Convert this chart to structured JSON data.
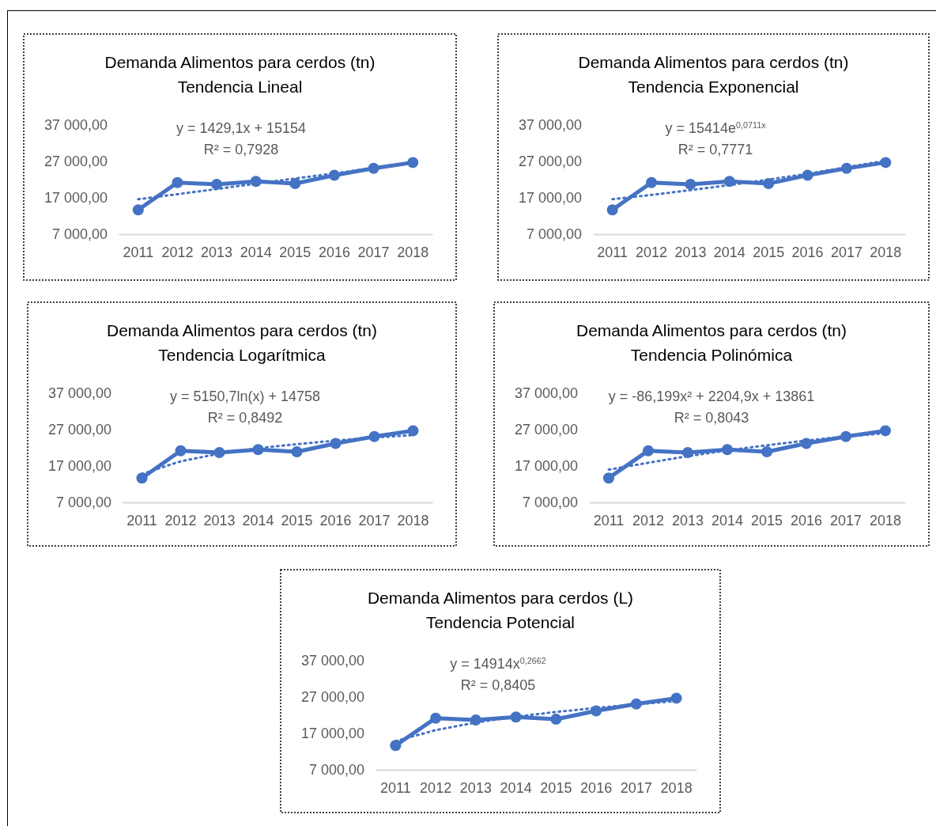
{
  "chart_data": [
    {
      "type": "line",
      "title": "Demanda Alimentos para cerdos (tn)",
      "subtitle": "Tendencia Lineal",
      "categories": [
        "2011",
        "2012",
        "2013",
        "2014",
        "2015",
        "2016",
        "2017",
        "2018"
      ],
      "ylim": [
        7000,
        37000
      ],
      "yticks": [
        {
          "value": 7000,
          "label": "7 000,00"
        },
        {
          "value": 17000,
          "label": "17 000,00"
        },
        {
          "value": 27000,
          "label": "27 000,00"
        },
        {
          "value": 37000,
          "label": "37 000,00"
        }
      ],
      "grid": false,
      "annotations": [
        "y = 1429,1x + 15154",
        "R² = 0,7928"
      ],
      "series": [
        {
          "color": "#4472c4",
          "marker": "circle",
          "line_style": "solid",
          "values": [
            13700,
            21200,
            20700,
            21500,
            20900,
            23200,
            25100,
            26700
          ]
        },
        {
          "type": "line",
          "color": "#4472c4",
          "marker": "none",
          "line_style": "dotted",
          "values": [
            16600,
            18000,
            19400,
            20900,
            22300,
            23700,
            25200,
            26600
          ]
        }
      ]
    },
    {
      "type": "line",
      "title": "Demanda Alimentos para cerdos (tn)",
      "subtitle": "Tendencia Exponencial",
      "categories": [
        "2011",
        "2012",
        "2013",
        "2014",
        "2015",
        "2016",
        "2017",
        "2018"
      ],
      "ylim": [
        7000,
        37000
      ],
      "yticks": [
        {
          "value": 7000,
          "label": "7 000,00"
        },
        {
          "value": 17000,
          "label": "17 000,00"
        },
        {
          "value": 27000,
          "label": "27 000,00"
        },
        {
          "value": 37000,
          "label": "37 000,00"
        }
      ],
      "grid": false,
      "annotations": [
        "y = 15414e$^{0,0711x}$",
        "R² = 0,7771"
      ],
      "series": [
        {
          "color": "#4472c4",
          "marker": "circle",
          "line_style": "solid",
          "values": [
            13700,
            21200,
            20700,
            21500,
            20900,
            23200,
            25100,
            26700
          ]
        },
        {
          "type": "line",
          "color": "#4472c4",
          "marker": "none",
          "line_style": "dotted",
          "values": [
            16600,
            17800,
            19100,
            20500,
            22000,
            23600,
            25400,
            27200
          ]
        }
      ]
    },
    {
      "type": "line",
      "title": "Demanda Alimentos para cerdos (tn)",
      "subtitle": "Tendencia Logarítmica",
      "categories": [
        "2011",
        "2012",
        "2013",
        "2014",
        "2015",
        "2016",
        "2017",
        "2018"
      ],
      "ylim": [
        7000,
        37000
      ],
      "yticks": [
        {
          "value": 7000,
          "label": "7 000,00"
        },
        {
          "value": 17000,
          "label": "17 000,00"
        },
        {
          "value": 27000,
          "label": "27 000,00"
        },
        {
          "value": 37000,
          "label": "37 000,00"
        }
      ],
      "grid": false,
      "annotations": [
        "y = 5150,7ln(x) + 14758",
        "R² = 0,8492"
      ],
      "series": [
        {
          "color": "#4472c4",
          "marker": "circle",
          "line_style": "solid",
          "values": [
            13700,
            21200,
            20700,
            21500,
            20900,
            23200,
            25100,
            26700
          ]
        },
        {
          "type": "line",
          "color": "#4472c4",
          "marker": "none",
          "line_style": "dotted",
          "values": [
            14800,
            18300,
            20400,
            21900,
            23000,
            24000,
            24800,
            25500
          ]
        }
      ]
    },
    {
      "type": "line",
      "title": "Demanda Alimentos para cerdos (tn)",
      "subtitle": "Tendencia Polinómica",
      "categories": [
        "2011",
        "2012",
        "2013",
        "2014",
        "2015",
        "2016",
        "2017",
        "2018"
      ],
      "ylim": [
        7000,
        37000
      ],
      "yticks": [
        {
          "value": 7000,
          "label": "7 000,00"
        },
        {
          "value": 17000,
          "label": "17 000,00"
        },
        {
          "value": 27000,
          "label": "27 000,00"
        },
        {
          "value": 37000,
          "label": "37 000,00"
        }
      ],
      "grid": false,
      "annotations": [
        "y = -86,199x² + 2204,9x + 13861",
        "R² = 0,8043"
      ],
      "series": [
        {
          "color": "#4472c4",
          "marker": "circle",
          "line_style": "solid",
          "values": [
            13700,
            21200,
            20700,
            21500,
            20900,
            23200,
            25100,
            26700
          ]
        },
        {
          "type": "line",
          "color": "#4472c4",
          "marker": "none",
          "line_style": "dotted",
          "values": [
            16000,
            17900,
            19700,
            21300,
            22700,
            24000,
            25100,
            26000
          ]
        }
      ]
    },
    {
      "type": "line",
      "title": "Demanda Alimentos para cerdos (L)",
      "subtitle": "Tendencia Potencial",
      "categories": [
        "2011",
        "2012",
        "2013",
        "2014",
        "2015",
        "2016",
        "2017",
        "2018"
      ],
      "ylim": [
        7000,
        37000
      ],
      "yticks": [
        {
          "value": 7000,
          "label": "7 000,00"
        },
        {
          "value": 17000,
          "label": "17 000,00"
        },
        {
          "value": 27000,
          "label": "27 000,00"
        },
        {
          "value": 37000,
          "label": "37 000,00"
        }
      ],
      "grid": false,
      "annotations": [
        "y = 14914x$^{0,2662}$",
        "R² = 0,8405"
      ],
      "series": [
        {
          "color": "#4472c4",
          "marker": "circle",
          "line_style": "solid",
          "values": [
            13700,
            21200,
            20700,
            21500,
            20900,
            23200,
            25100,
            26700
          ]
        },
        {
          "type": "line",
          "color": "#4472c4",
          "marker": "none",
          "line_style": "dotted",
          "values": [
            14900,
            17900,
            20000,
            21600,
            22900,
            24000,
            25000,
            25900
          ]
        }
      ]
    }
  ]
}
